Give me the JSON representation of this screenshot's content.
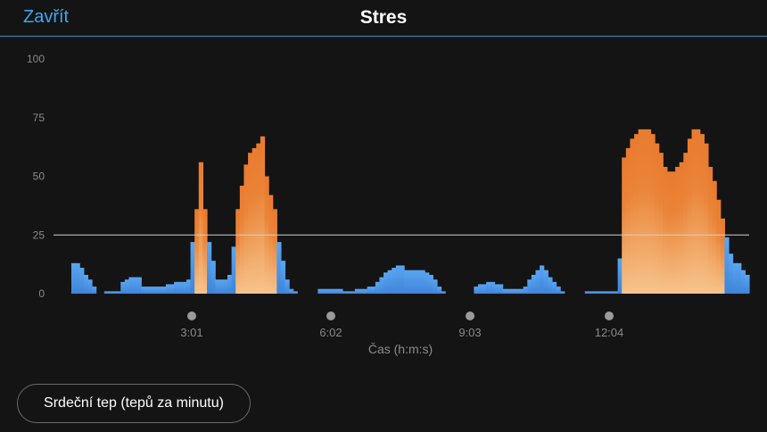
{
  "header": {
    "close_label": "Zavřít",
    "title": "Stres"
  },
  "footer": {
    "heart_rate_button": "Srdeční tep (tepů za minutu)"
  },
  "chart_data": {
    "type": "bar",
    "title": "Stres",
    "xlabel": "Čas (h:m:s)",
    "ylabel": "",
    "ylim": [
      0,
      100
    ],
    "yticks": [
      0,
      25,
      50,
      75,
      100
    ],
    "xtick_labels": [
      "3:01",
      "6:02",
      "9:03",
      "12:04"
    ],
    "threshold": 25,
    "colors": {
      "low": "#4a90e2",
      "low_light": "#5aa6f2",
      "high_top": "#e97b2f",
      "high_bottom": "#f6c48c",
      "threshold_line": "#cfcfcf",
      "axis_text": "#8a8a8a",
      "tick_dot": "#9a9a9a"
    },
    "values": [
      13,
      13,
      11,
      8,
      6,
      3,
      0,
      0,
      1,
      1,
      1,
      1,
      5,
      6,
      7,
      7,
      7,
      3,
      3,
      3,
      3,
      3,
      3,
      4,
      4,
      5,
      5,
      5,
      6,
      22,
      36,
      56,
      36,
      22,
      14,
      6,
      6,
      6,
      8,
      20,
      36,
      46,
      55,
      60,
      62,
      64,
      67,
      50,
      42,
      36,
      22,
      14,
      6,
      2,
      1,
      0,
      0,
      0,
      0,
      0,
      2,
      2,
      2,
      2,
      2,
      2,
      1,
      1,
      1,
      2,
      2,
      2,
      3,
      3,
      5,
      7,
      9,
      10,
      11,
      12,
      12,
      10,
      10,
      10,
      10,
      10,
      9,
      8,
      6,
      3,
      1,
      0,
      0,
      0,
      0,
      0,
      0,
      0,
      3,
      4,
      4,
      5,
      5,
      4,
      4,
      2,
      2,
      2,
      2,
      2,
      3,
      6,
      8,
      10,
      12,
      10,
      7,
      5,
      3,
      1,
      0,
      0,
      0,
      0,
      0,
      1,
      1,
      1,
      1,
      1,
      1,
      1,
      1,
      15,
      58,
      62,
      66,
      68,
      70,
      70,
      70,
      68,
      64,
      60,
      54,
      52,
      52,
      54,
      56,
      60,
      66,
      70,
      70,
      68,
      64,
      54,
      48,
      40,
      32,
      24,
      17,
      13,
      13,
      10,
      8
    ]
  }
}
